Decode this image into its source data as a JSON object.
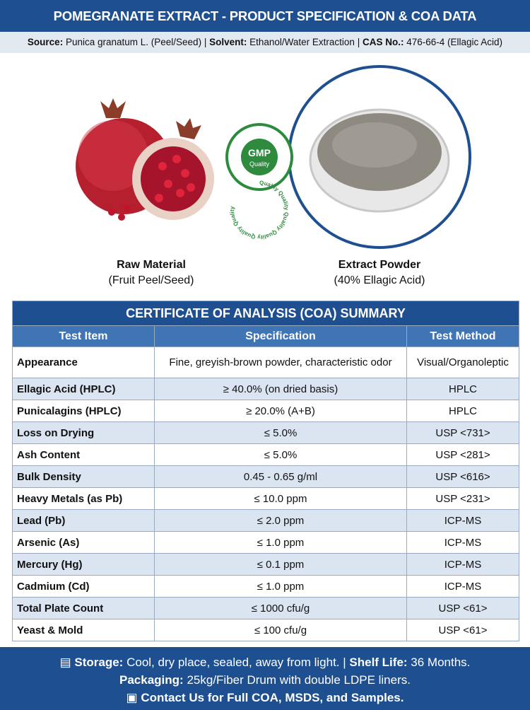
{
  "header": {
    "title": "POMEGRANATE EXTRACT - PRODUCT SPECIFICATION & COA DATA",
    "source_label": "Source:",
    "source": "Punica granatum L. (Peel/Seed) |",
    "solvent_label": "Solvent:",
    "solvent": "Ethanol/Water Extraction |",
    "cas_label": "CAS No.:",
    "cas": "476-66-4 (Ellagic Acid)"
  },
  "badge": {
    "ring": "Quality Quality Quality Quality Quality Quality",
    "title": "GMP",
    "subtitle": "Quality"
  },
  "captions": [
    {
      "title": "Raw Material",
      "subtitle": "(Fruit Peel/Seed)"
    },
    {
      "title": "Extract Powder",
      "subtitle": "(40% Ellagic Acid)"
    }
  ],
  "table": {
    "title": "CERTIFICATE OF ANALYSIS (COA) SUMMARY",
    "columns": [
      "Test Item",
      "Specification",
      "Test Method"
    ],
    "rows": [
      [
        "Appearance",
        "Fine, greyish-brown powder, characteristic odor",
        "Visual/Organoleptic"
      ],
      [
        "Ellagic Acid (HPLC)",
        "≥ 40.0% (on dried basis)",
        "HPLC"
      ],
      [
        "Punicalagins (HPLC)",
        "≥ 20.0% (A+B)",
        "HPLC"
      ],
      [
        "Loss on Drying",
        "≤ 5.0%",
        "USP <731>"
      ],
      [
        "Ash Content",
        "≤ 5.0%",
        "USP <281>"
      ],
      [
        "Bulk Density",
        "0.45 - 0.65 g/ml",
        "USP <616>"
      ],
      [
        "Heavy Metals (as Pb)",
        "≤ 10.0 ppm",
        "USP <231>"
      ],
      [
        "Lead (Pb)",
        "≤ 2.0 ppm",
        "ICP-MS"
      ],
      [
        "Arsenic (As)",
        "≤ 1.0 ppm",
        "ICP-MS"
      ],
      [
        "Mercury (Hg)",
        "≤ 0.1 ppm",
        "ICP-MS"
      ],
      [
        "Cadmium (Cd)",
        "≤ 1.0 ppm",
        "ICP-MS"
      ],
      [
        "Total Plate Count",
        "≤ 1000 cfu/g",
        "USP <61>"
      ],
      [
        "Yeast & Mold",
        "≤ 100 cfu/g",
        "USP <61>"
      ]
    ]
  },
  "footer": {
    "storage_label": "Storage:",
    "storage": "Cool, dry place, sealed, away from light. |",
    "shelf_label": "Shelf Life:",
    "shelf": "36 Months.",
    "packaging_label": "Packaging:",
    "packaging": "25kg/Fiber Drum with double LDPE liners.",
    "contact": "Contact Us for Full COA, MSDS, and Samples."
  }
}
